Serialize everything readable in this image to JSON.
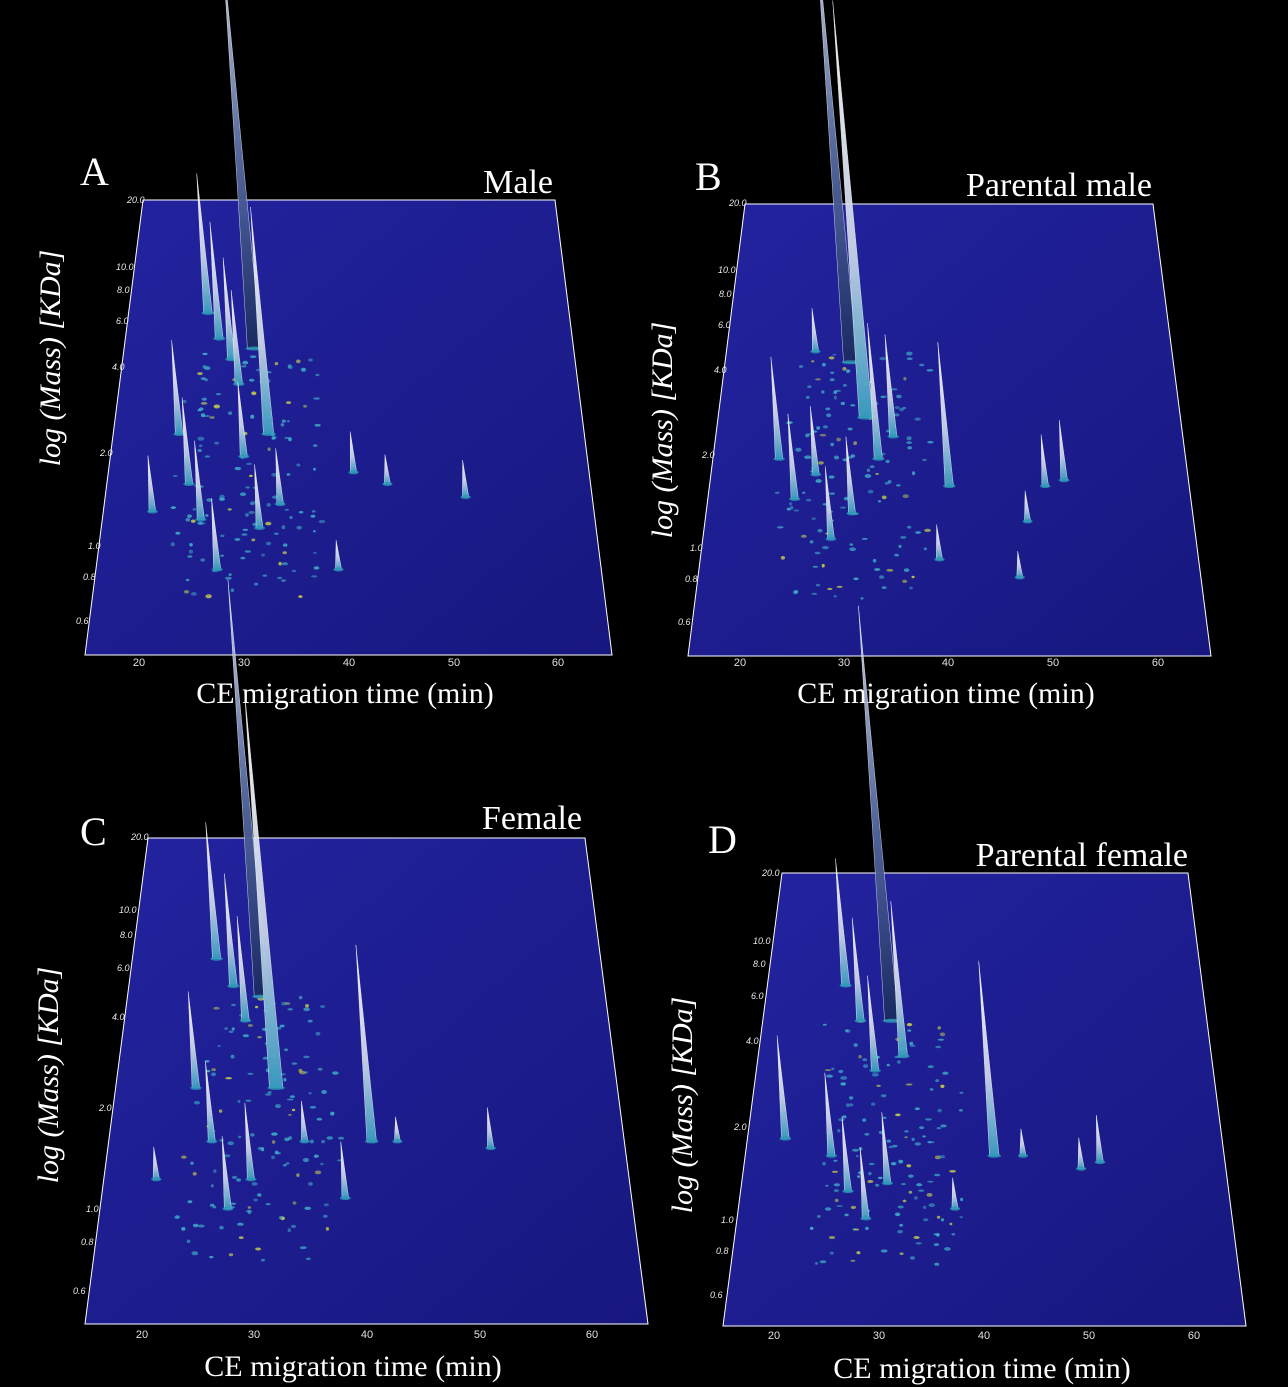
{
  "figure": {
    "panels": [
      {
        "letter": "A",
        "title": "Male"
      },
      {
        "letter": "B",
        "title": "Parental male"
      },
      {
        "letter": "C",
        "title": "Female"
      },
      {
        "letter": "D",
        "title": "Parental female"
      }
    ]
  },
  "colors": {
    "background": "#000000",
    "plot_floor": "#1c1c8e",
    "edge": "#ffffff",
    "peak_colors": [
      "#ffffff",
      "#dfe6f2",
      "#3fb0c8",
      "#2a9ab8",
      "#c8d04a",
      "#d46a5a",
      "#e0a050"
    ]
  },
  "chart_data": [
    {
      "type": "surface3d",
      "title": "Male",
      "xlabel": "CE migration time (min)",
      "ylabel": "log (Mass) [KDa]",
      "xlim": [
        15,
        65
      ],
      "ylim": [
        0.5,
        20.0
      ],
      "xticks": [
        "20",
        "30",
        "40",
        "50",
        "60"
      ],
      "yticks": [
        "20.0",
        "10.0",
        "8.0",
        "6.0",
        "4.0",
        "2.0",
        "1.0",
        "0.8",
        "0.6"
      ],
      "peaks": [
        {
          "x": 29.5,
          "mass": 6.0,
          "h": 1.0
        },
        {
          "x": 31.5,
          "mass": 3.0,
          "h": 0.55
        },
        {
          "x": 24.0,
          "mass": 8.0,
          "h": 0.32
        },
        {
          "x": 25.5,
          "mass": 6.5,
          "h": 0.26
        },
        {
          "x": 27.0,
          "mass": 5.5,
          "h": 0.22
        },
        {
          "x": 28.0,
          "mass": 4.5,
          "h": 0.2
        },
        {
          "x": 22.0,
          "mass": 3.0,
          "h": 0.2
        },
        {
          "x": 23.5,
          "mass": 2.0,
          "h": 0.18
        },
        {
          "x": 25.0,
          "mass": 1.5,
          "h": 0.16
        },
        {
          "x": 27.0,
          "mass": 1.0,
          "h": 0.14
        },
        {
          "x": 29.0,
          "mass": 2.5,
          "h": 0.15
        },
        {
          "x": 20.0,
          "mass": 1.6,
          "h": 0.1
        },
        {
          "x": 31.0,
          "mass": 1.4,
          "h": 0.12
        },
        {
          "x": 33.0,
          "mass": 1.7,
          "h": 0.1
        },
        {
          "x": 40.5,
          "mass": 2.2,
          "h": 0.06
        },
        {
          "x": 44.0,
          "mass": 2.0,
          "h": 0.03
        },
        {
          "x": 52.0,
          "mass": 1.8,
          "h": 0.05
        },
        {
          "x": 39.0,
          "mass": 1.0,
          "h": 0.03
        }
      ]
    },
    {
      "type": "surface3d",
      "title": "Parental male",
      "xlabel": "CE migration time (min)",
      "ylabel": "log (Mass) [KDa]",
      "xlim": [
        15,
        65
      ],
      "ylim": [
        0.5,
        20.0
      ],
      "xticks": [
        "20",
        "30",
        "40",
        "50",
        "60"
      ],
      "yticks": [
        "20.0",
        "10.0",
        "8.0",
        "6.0",
        "4.0",
        "2.0",
        "1.0",
        "0.8",
        "0.6"
      ],
      "peaks": [
        {
          "x": 29.0,
          "mass": 5.5,
          "h": 1.0
        },
        {
          "x": 31.0,
          "mass": 3.5,
          "h": 0.95
        },
        {
          "x": 32.5,
          "mass": 2.5,
          "h": 0.28
        },
        {
          "x": 34.0,
          "mass": 3.0,
          "h": 0.2
        },
        {
          "x": 22.0,
          "mass": 2.5,
          "h": 0.2
        },
        {
          "x": 24.0,
          "mass": 1.8,
          "h": 0.16
        },
        {
          "x": 26.0,
          "mass": 2.2,
          "h": 0.12
        },
        {
          "x": 28.0,
          "mass": 1.3,
          "h": 0.13
        },
        {
          "x": 30.0,
          "mass": 1.6,
          "h": 0.14
        },
        {
          "x": 40.0,
          "mass": 2.0,
          "h": 0.3
        },
        {
          "x": 50.0,
          "mass": 2.0,
          "h": 0.08
        },
        {
          "x": 52.0,
          "mass": 2.1,
          "h": 0.1
        },
        {
          "x": 48.0,
          "mass": 1.5,
          "h": 0.03
        },
        {
          "x": 39.0,
          "mass": 1.1,
          "h": 0.04
        },
        {
          "x": 47.0,
          "mass": 0.95,
          "h": 0.02
        },
        {
          "x": 25.0,
          "mass": 6.0,
          "h": 0.06
        }
      ]
    },
    {
      "type": "surface3d",
      "title": "Female",
      "xlabel": "CE migration time (min)",
      "ylabel": "log (Mass) [KDa]",
      "xlim": [
        15,
        65
      ],
      "ylim": [
        0.5,
        20.0
      ],
      "xticks": [
        "20",
        "30",
        "40",
        "50",
        "60"
      ],
      "yticks": [
        "20.0",
        "10.0",
        "8.0",
        "6.0",
        "4.0",
        "2.0",
        "1.0",
        "0.8",
        "0.6"
      ],
      "peaks": [
        {
          "x": 29.0,
          "mass": 6.0,
          "h": 1.0
        },
        {
          "x": 31.0,
          "mass": 3.0,
          "h": 0.95
        },
        {
          "x": 24.0,
          "mass": 8.0,
          "h": 0.3
        },
        {
          "x": 26.0,
          "mass": 6.5,
          "h": 0.24
        },
        {
          "x": 27.5,
          "mass": 5.0,
          "h": 0.22
        },
        {
          "x": 23.0,
          "mass": 3.0,
          "h": 0.2
        },
        {
          "x": 25.0,
          "mass": 2.0,
          "h": 0.16
        },
        {
          "x": 27.0,
          "mass": 1.2,
          "h": 0.14
        },
        {
          "x": 29.0,
          "mass": 1.5,
          "h": 0.15
        },
        {
          "x": 40.5,
          "mass": 2.0,
          "h": 0.45
        },
        {
          "x": 38.0,
          "mass": 1.3,
          "h": 0.1
        },
        {
          "x": 52.0,
          "mass": 1.9,
          "h": 0.06
        },
        {
          "x": 43.0,
          "mass": 2.0,
          "h": 0.02
        },
        {
          "x": 20.0,
          "mass": 1.5,
          "h": 0.04
        },
        {
          "x": 34.0,
          "mass": 2.0,
          "h": 0.06
        }
      ]
    },
    {
      "type": "surface3d",
      "title": "Parental female",
      "xlabel": "CE migration time (min)",
      "ylabel": "log (Mass) [KDa]",
      "xlim": [
        15,
        65
      ],
      "ylim": [
        0.5,
        20.0
      ],
      "xticks": [
        "20",
        "30",
        "40",
        "50",
        "60"
      ],
      "yticks": [
        "20.0",
        "10.0",
        "8.0",
        "6.0",
        "4.0",
        "2.0",
        "1.0",
        "0.8",
        "0.6"
      ],
      "peaks": [
        {
          "x": 29.5,
          "mass": 6.0,
          "h": 1.0
        },
        {
          "x": 31.0,
          "mass": 4.5,
          "h": 0.35
        },
        {
          "x": 24.0,
          "mass": 8.0,
          "h": 0.28
        },
        {
          "x": 26.0,
          "mass": 6.0,
          "h": 0.22
        },
        {
          "x": 28.0,
          "mass": 4.0,
          "h": 0.2
        },
        {
          "x": 19.0,
          "mass": 2.3,
          "h": 0.22
        },
        {
          "x": 24.0,
          "mass": 2.0,
          "h": 0.17
        },
        {
          "x": 26.0,
          "mass": 1.5,
          "h": 0.15
        },
        {
          "x": 28.0,
          "mass": 1.2,
          "h": 0.14
        },
        {
          "x": 30.0,
          "mass": 1.6,
          "h": 0.14
        },
        {
          "x": 41.0,
          "mass": 2.0,
          "h": 0.45
        },
        {
          "x": 52.0,
          "mass": 1.9,
          "h": 0.08
        },
        {
          "x": 50.0,
          "mass": 1.8,
          "h": 0.04
        },
        {
          "x": 44.0,
          "mass": 2.0,
          "h": 0.03
        },
        {
          "x": 37.0,
          "mass": 1.3,
          "h": 0.04
        }
      ]
    }
  ]
}
